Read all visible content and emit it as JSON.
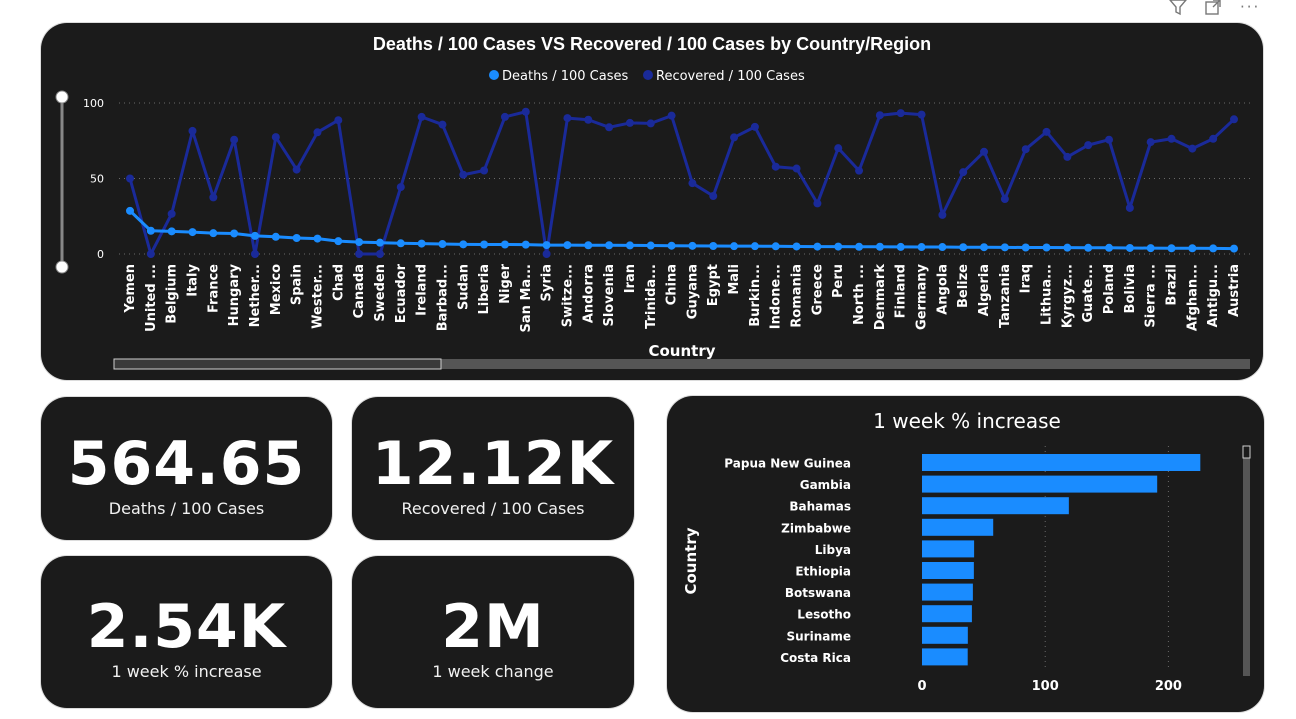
{
  "toolbar": {
    "filter_icon": "filter-icon",
    "focus_icon": "focus-mode-icon",
    "more_icon": "more-options-icon"
  },
  "kpis": [
    {
      "value": "564.65",
      "label": "Deaths / 100 Cases"
    },
    {
      "value": "12.12K",
      "label": "Recovered / 100 Cases"
    },
    {
      "value": "2.54K",
      "label": "1 week % increase"
    },
    {
      "value": "2M",
      "label": "1 week change"
    }
  ],
  "colors": {
    "deaths": "#1a8cff",
    "recovered": "#1a2a99",
    "bar": "#1a8cff",
    "card": "#1b1b1b"
  },
  "chart_data": [
    {
      "type": "line",
      "title": "Deaths / 100 Cases VS Recovered / 100 Cases by Country/Region",
      "xlabel": "Country",
      "ylabel": "",
      "ylim": [
        0,
        100
      ],
      "yticks": [
        0,
        50,
        100
      ],
      "legend_position": "top-center",
      "grid": true,
      "categories": [
        "Yemen",
        "United ...",
        "Belgium",
        "Italy",
        "France",
        "Hungary",
        "Nether...",
        "Mexico",
        "Spain",
        "Wester...",
        "Chad",
        "Canada",
        "Sweden",
        "Ecuador",
        "Ireland",
        "Barbad...",
        "Sudan",
        "Liberia",
        "Niger",
        "San Ma...",
        "Syria",
        "Switze...",
        "Andorra",
        "Slovenia",
        "Iran",
        "Trinida...",
        "China",
        "Guyana",
        "Egypt",
        "Mali",
        "Burkin...",
        "Indone...",
        "Romania",
        "Greece",
        "Peru",
        "North ...",
        "Denmark",
        "Finland",
        "Germany",
        "Angola",
        "Belize",
        "Algeria",
        "Tanzania",
        "Iraq",
        "Lithua...",
        "Kyrgyz...",
        "Guate...",
        "Poland",
        "Bolivia",
        "Sierra ...",
        "Brazil",
        "Afghan...",
        "Antigu...",
        "Austria"
      ],
      "series": [
        {
          "name": "Deaths / 100 Cases",
          "values": [
            28.6,
            15.4,
            15.0,
            14.5,
            13.8,
            13.6,
            12.0,
            11.4,
            10.6,
            10.2,
            8.5,
            7.9,
            7.5,
            7.1,
            6.9,
            6.6,
            6.4,
            6.3,
            6.3,
            6.2,
            5.9,
            5.9,
            5.8,
            5.8,
            5.7,
            5.6,
            5.5,
            5.4,
            5.3,
            5.2,
            5.2,
            5.1,
            5.0,
            4.9,
            4.9,
            4.8,
            4.8,
            4.7,
            4.6,
            4.6,
            4.5,
            4.5,
            4.4,
            4.3,
            4.3,
            4.2,
            4.1,
            4.1,
            4.0,
            3.9,
            3.8,
            3.8,
            3.7,
            3.6
          ]
        },
        {
          "name": "Recovered / 100 Cases",
          "values": [
            50,
            0,
            26.6,
            81.5,
            37.5,
            75.7,
            0,
            77.4,
            55.9,
            80.6,
            88.6,
            0,
            0,
            44.3,
            90.8,
            85.7,
            52.5,
            55.3,
            90.8,
            94.2,
            0,
            90,
            88.9,
            83.9,
            86.8,
            86.5,
            91.6,
            46.9,
            38.4,
            77.2,
            84.2,
            57.8,
            56.6,
            33.5,
            70.1,
            55.2,
            91.9,
            93.3,
            92.3,
            25.9,
            54.2,
            67.7,
            36.4,
            69.4,
            80.9,
            64.3,
            72.1,
            75.7,
            30.5,
            74.1,
            76.3,
            69.8,
            76.3,
            89.2
          ]
        }
      ]
    },
    {
      "type": "bar",
      "orientation": "horizontal",
      "title": "1 week % increase",
      "xlabel": "",
      "ylabel": "Country",
      "xlim": [
        0,
        250
      ],
      "xticks": [
        0,
        100,
        200
      ],
      "grid": true,
      "categories": [
        "Papua New Guinea",
        "Gambia",
        "Bahamas",
        "Zimbabwe",
        "Libya",
        "Ethiopia",
        "Botswana",
        "Lesotho",
        "Suriname",
        "Costa Rica"
      ],
      "values": [
        225.9,
        190.9,
        119.2,
        57.8,
        42.3,
        42.1,
        41.3,
        40.5,
        37.2,
        37.1
      ]
    }
  ]
}
